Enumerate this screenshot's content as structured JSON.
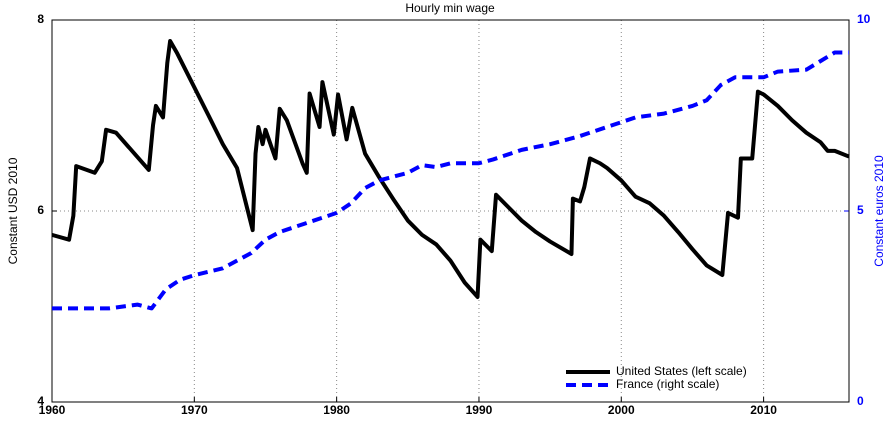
{
  "chart_data": {
    "type": "line",
    "title": "Hourly min wage",
    "ylabel": "Constant USD 2010",
    "y2label": "Constant euros 2010",
    "xlim": [
      1960,
      2016
    ],
    "xticks": [
      1960,
      1970,
      1980,
      1990,
      2000,
      2010
    ],
    "ylim": [
      4,
      8
    ],
    "yticks": [
      4,
      6,
      8
    ],
    "y2lim": [
      0,
      10
    ],
    "y2ticks": [
      0,
      5,
      10
    ],
    "y2color": "#0000ff",
    "grid": true,
    "legend": "lower right",
    "series": [
      {
        "name": "United States (left scale)",
        "color": "#000000",
        "dash": false,
        "x": [
          1960,
          1961.2,
          1961.5,
          1961.7,
          1963,
          1963.5,
          1963.8,
          1964.5,
          1966.8,
          1967.1,
          1967.3,
          1967.8,
          1968.1,
          1968.3,
          1968.8,
          1971,
          1972,
          1973,
          1974.1,
          1974.3,
          1974.5,
          1974.8,
          1975,
          1975.7,
          1976,
          1976.5,
          1977.6,
          1977.9,
          1978.1,
          1978.8,
          1979,
          1979.8,
          1980.1,
          1980.7,
          1981.1,
          1982,
          1983,
          1984,
          1985,
          1986,
          1987,
          1988,
          1989,
          1989.9,
          1990.1,
          1990.9,
          1991.2,
          1992,
          1993,
          1994,
          1995,
          1996.5,
          1996.6,
          1997.1,
          1997.4,
          1997.8,
          1998.5,
          1999,
          2000,
          2001,
          2002,
          2003,
          2004,
          2005,
          2006,
          2007.1,
          2007.5,
          2008.2,
          2008.4,
          2009.2,
          2009.6,
          2010,
          2011,
          2012,
          2013,
          2014,
          2014.5,
          2015,
          2016
        ],
        "values": [
          5.75,
          5.7,
          5.95,
          6.47,
          6.4,
          6.52,
          6.85,
          6.82,
          6.43,
          6.9,
          7.1,
          6.98,
          7.55,
          7.78,
          7.65,
          7.0,
          6.7,
          6.45,
          5.8,
          6.6,
          6.88,
          6.7,
          6.85,
          6.55,
          7.07,
          6.95,
          6.5,
          6.4,
          7.23,
          6.88,
          7.35,
          6.8,
          7.22,
          6.75,
          7.08,
          6.6,
          6.35,
          6.12,
          5.9,
          5.75,
          5.65,
          5.48,
          5.25,
          5.1,
          5.7,
          5.58,
          6.17,
          6.05,
          5.9,
          5.78,
          5.68,
          5.55,
          6.13,
          6.1,
          6.25,
          6.55,
          6.5,
          6.45,
          6.32,
          6.15,
          6.08,
          5.95,
          5.78,
          5.6,
          5.43,
          5.33,
          5.98,
          5.93,
          6.55,
          6.55,
          7.25,
          7.22,
          7.1,
          6.95,
          6.82,
          6.72,
          6.63,
          6.63,
          6.57
        ]
      },
      {
        "name": "France (right scale)",
        "color": "#0000ff",
        "dash": true,
        "axis": "y2",
        "x": [
          1960,
          1964,
          1966,
          1967,
          1968,
          1969,
          1970,
          1972,
          1974,
          1975,
          1976,
          1978,
          1980,
          1981,
          1982,
          1983,
          1985,
          1986,
          1987,
          1988,
          1990,
          1991,
          1993,
          1995,
          1997,
          1999,
          2001,
          2003,
          2005,
          2006,
          2007,
          2008,
          2010,
          2011,
          2013,
          2015,
          2016
        ],
        "values": [
          2.45,
          2.45,
          2.55,
          2.45,
          2.95,
          3.2,
          3.32,
          3.5,
          3.9,
          4.25,
          4.45,
          4.7,
          4.95,
          5.2,
          5.6,
          5.8,
          6.0,
          6.2,
          6.15,
          6.25,
          6.25,
          6.35,
          6.6,
          6.75,
          6.95,
          7.2,
          7.45,
          7.55,
          7.75,
          7.9,
          8.3,
          8.5,
          8.5,
          8.65,
          8.7,
          9.15,
          9.15
        ]
      }
    ]
  }
}
